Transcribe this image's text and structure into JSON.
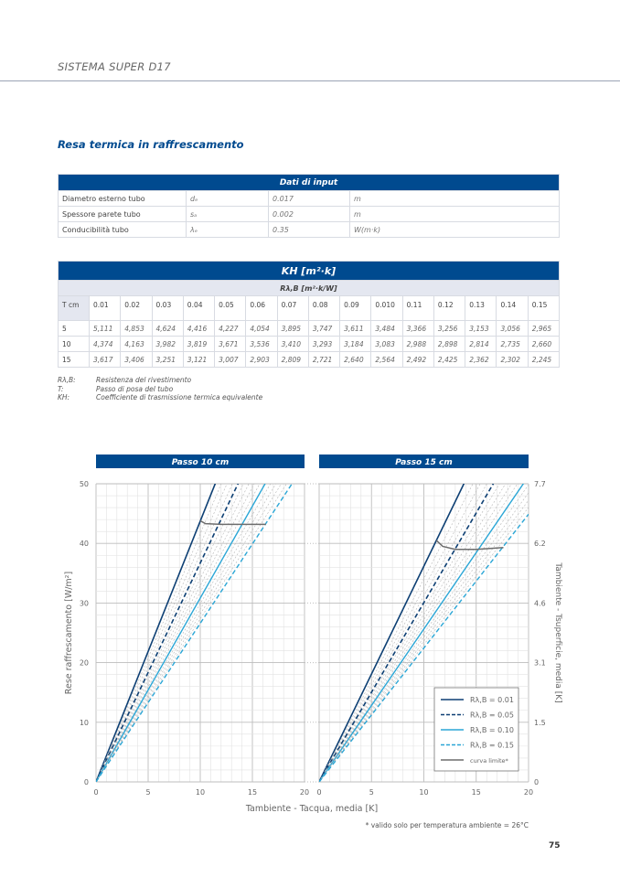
{
  "header": {
    "section": "SISTEMA SUPER D17"
  },
  "title": "Resa termica in raffrescamento",
  "input_table": {
    "title": "Dati di input",
    "rows": [
      {
        "label": "Diametro esterno tubo",
        "symbol": "dₑ",
        "value": "0.017",
        "unit": "m"
      },
      {
        "label": "Spessore parete tubo",
        "symbol": "sₐ",
        "value": "0.002",
        "unit": "m"
      },
      {
        "label": "Conducibilità tubo",
        "symbol": "λₑ",
        "value": "0.35",
        "unit": "W(m·k)"
      }
    ]
  },
  "kh_table": {
    "title": "KH [m²·k]",
    "subtitle": "Rλ,B [m²·k/W]",
    "corner": "T cm",
    "columns": [
      "0.01",
      "0.02",
      "0.03",
      "0.04",
      "0.05",
      "0.06",
      "0.07",
      "0.08",
      "0.09",
      "0.010",
      "0.11",
      "0.12",
      "0.13",
      "0.14",
      "0.15"
    ],
    "rows": [
      {
        "t": "5",
        "values": [
          "5,111",
          "4,853",
          "4,624",
          "4,416",
          "4,227",
          "4,054",
          "3,895",
          "3,747",
          "3,611",
          "3,484",
          "3,366",
          "3,256",
          "3,153",
          "3,056",
          "2,965"
        ]
      },
      {
        "t": "10",
        "values": [
          "4,374",
          "4,163",
          "3,982",
          "3,819",
          "3,671",
          "3,536",
          "3,410",
          "3,293",
          "3,184",
          "3,083",
          "2,988",
          "2,898",
          "2,814",
          "2,735",
          "2,660"
        ]
      },
      {
        "t": "15",
        "values": [
          "3,617",
          "3,406",
          "3,251",
          "3,121",
          "3,007",
          "2,903",
          "2,809",
          "2,721",
          "2,640",
          "2,564",
          "2,492",
          "2,425",
          "2,362",
          "2,302",
          "2,245"
        ]
      }
    ]
  },
  "notes": [
    {
      "key": "Rλ,B:",
      "text": "Resistenza del rivestimento"
    },
    {
      "key": "T:",
      "text": "Passo di posa del tubo"
    },
    {
      "key": "KH:",
      "text": "Coefficiente di trasmissione termica equivalente"
    }
  ],
  "colors": {
    "brand": "#004a8f",
    "dark": "#0d3f73",
    "light": "#2aa6d6",
    "limit": "#6d6d6d"
  },
  "chart_data": {
    "type": "line",
    "ylabel": "Rese raffrescamento [W/m²]",
    "y2label": "Tambiente - Tsuperficie, media [K]",
    "xlabel": "Tambiente - Tacqua, media [K]",
    "footnote": "* valido solo per temperatura ambiente = 26°C",
    "xlim": [
      0,
      20
    ],
    "ylim": [
      0,
      50
    ],
    "xticks": [
      "0",
      "5",
      "10",
      "15",
      "20"
    ],
    "yticks": [
      "0",
      "10",
      "20",
      "30",
      "40",
      "50"
    ],
    "y2ticks": [
      "0",
      "1.5",
      "3.1",
      "4.6",
      "6.2",
      "7.7"
    ],
    "legend": [
      {
        "label": "Rλ,B = 0.01",
        "style": "dark-solid"
      },
      {
        "label": "Rλ,B = 0.05",
        "style": "dark-dashed"
      },
      {
        "label": "Rλ,B = 0.10",
        "style": "light-solid"
      },
      {
        "label": "Rλ,B = 0.15",
        "style": "light-dashed"
      },
      {
        "label": "curva limite*",
        "style": "gray-solid"
      }
    ],
    "legend_position": "bottom-right of right panel",
    "panels": [
      {
        "title": "Passo 10 cm",
        "slopes": [
          4.374,
          4.163,
          3.982,
          3.819,
          3.671,
          3.536,
          3.41,
          3.293,
          3.184,
          3.083,
          2.988,
          2.898,
          2.814,
          2.735,
          2.66
        ],
        "limit_curve": [
          [
            10,
            43.8
          ],
          [
            10.5,
            43.3
          ],
          [
            12,
            43.2
          ],
          [
            16.3,
            43.2
          ]
        ]
      },
      {
        "title": "Passo 15 cm",
        "slopes": [
          3.617,
          3.406,
          3.251,
          3.121,
          3.007,
          2.903,
          2.809,
          2.721,
          2.64,
          2.564,
          2.492,
          2.425,
          2.362,
          2.302,
          2.245
        ],
        "limit_curve": [
          [
            11.2,
            40.5
          ],
          [
            11.8,
            39.5
          ],
          [
            13,
            39.0
          ],
          [
            15,
            39.0
          ],
          [
            17.6,
            39.3
          ]
        ]
      }
    ]
  },
  "page_number": "75"
}
